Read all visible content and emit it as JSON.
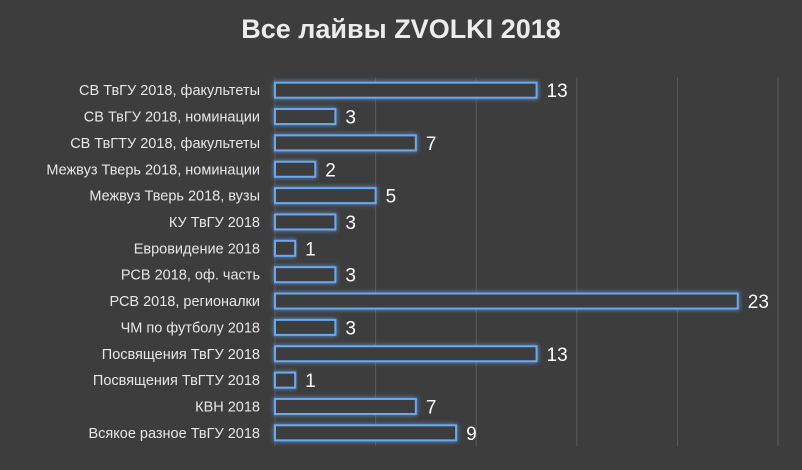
{
  "chart_data": {
    "type": "bar",
    "orientation": "horizontal",
    "title": "Все лайвы ZVOLKI 2018",
    "categories": [
      "СВ ТвГУ 2018, факультеты",
      "СВ ТвГУ 2018, номинации",
      "СВ ТвГТУ 2018, факультеты",
      "Межвуз Тверь 2018, номинации",
      "Межвуз Тверь 2018, вузы",
      "КУ ТвГУ 2018",
      "Евровидение 2018",
      "РСВ 2018, оф. часть",
      "РСВ 2018, регионалки",
      "ЧМ по футболу 2018",
      "Посвящения ТвГУ 2018",
      "Посвящения ТвГТУ 2018",
      "КВН 2018",
      "Всякое разное ТвГУ 2018"
    ],
    "values": [
      13,
      3,
      7,
      2,
      5,
      3,
      1,
      3,
      23,
      3,
      13,
      1,
      7,
      9
    ],
    "xlim": [
      0,
      25
    ],
    "grid": true,
    "legend": "none"
  },
  "colors": {
    "background": "#3d3d3d",
    "bar_outline": "#6aa8f0",
    "text": "#e6e6e6"
  }
}
